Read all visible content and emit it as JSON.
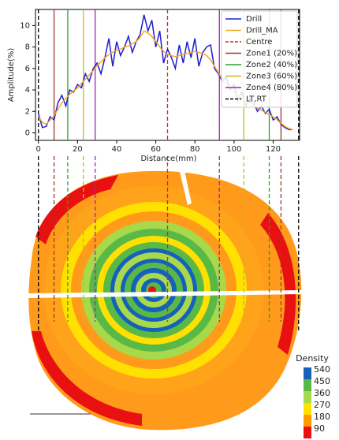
{
  "chart_data": {
    "type": "line",
    "xlabel": "Distance(mm)",
    "ylabel": "Amplitude(%)",
    "x": [
      0,
      2,
      4,
      6,
      8,
      10,
      12,
      14,
      16,
      18,
      20,
      22,
      24,
      26,
      28,
      30,
      32,
      34,
      36,
      38,
      40,
      42,
      44,
      46,
      48,
      50,
      52,
      54,
      56,
      58,
      60,
      62,
      64,
      66,
      68,
      70,
      72,
      74,
      76,
      78,
      80,
      82,
      84,
      86,
      88,
      90,
      92,
      94,
      96,
      98,
      100,
      102,
      104,
      106,
      108,
      110,
      112,
      114,
      116,
      118,
      120,
      122,
      124,
      126,
      128,
      130
    ],
    "series": [
      {
        "name": "Drill",
        "color": "#1f1fd0",
        "values": [
          1.8,
          0.5,
          0.6,
          1.5,
          1.2,
          2.8,
          3.5,
          2.5,
          4.0,
          3.8,
          4.5,
          4.2,
          5.5,
          4.8,
          6.0,
          6.5,
          5.5,
          7.0,
          8.8,
          6.2,
          8.5,
          7.2,
          8.0,
          9.0,
          7.5,
          8.5,
          9.2,
          11.0,
          9.5,
          10.5,
          8.0,
          9.5,
          6.5,
          7.8,
          7.0,
          6.0,
          8.2,
          6.5,
          8.5,
          7.0,
          8.8,
          6.2,
          7.5,
          8.0,
          8.2,
          6.0,
          5.5,
          4.8,
          5.2,
          4.0,
          4.5,
          3.0,
          3.8,
          2.5,
          3.2,
          2.8,
          2.0,
          2.5,
          1.8,
          2.2,
          1.2,
          1.5,
          0.8,
          0.5,
          0.3,
          0.3
        ]
      },
      {
        "name": "Drill_MA",
        "color": "#f5a623",
        "values": [
          1.5,
          1.0,
          0.8,
          1.2,
          1.6,
          2.2,
          2.8,
          3.2,
          3.6,
          3.9,
          4.2,
          4.6,
          5.0,
          5.4,
          5.8,
          6.3,
          6.6,
          7.0,
          7.3,
          7.5,
          7.7,
          7.8,
          8.0,
          8.1,
          8.3,
          8.5,
          8.9,
          9.5,
          9.3,
          9.0,
          8.5,
          8.0,
          7.6,
          7.3,
          7.2,
          7.1,
          7.2,
          7.3,
          7.4,
          7.5,
          7.6,
          7.5,
          7.4,
          7.2,
          6.8,
          6.2,
          5.6,
          5.0,
          4.6,
          4.2,
          3.8,
          3.5,
          3.2,
          3.0,
          2.8,
          2.6,
          2.3,
          2.1,
          1.9,
          1.7,
          1.5,
          1.2,
          0.9,
          0.6,
          0.4,
          0.3
        ]
      }
    ],
    "vlines": [
      {
        "name": "Centre",
        "color": "#d62728",
        "dashed": true,
        "x": [
          66
        ]
      },
      {
        "name": "Zone1 (20%)",
        "color": "#a0392b",
        "dashed": false,
        "x": [
          8,
          124
        ]
      },
      {
        "name": "Zone2 (40%)",
        "color": "#2ca02c",
        "dashed": false,
        "x": [
          15,
          118
        ]
      },
      {
        "name": "Zone3 (60%)",
        "color": "#bcbd22",
        "dashed": false,
        "x": [
          23,
          105
        ]
      },
      {
        "name": "Zone4 (80%)",
        "color": "#9c27b0",
        "dashed": false,
        "x": [
          29,
          92.5
        ]
      },
      {
        "name": "LT,RT",
        "color": "#000000",
        "dashed": true,
        "x": [
          0,
          133
        ]
      }
    ],
    "xlim": [
      -1.5,
      133.5
    ],
    "xticks": [
      0,
      20,
      40,
      60,
      80,
      100,
      120
    ],
    "ylim": [
      -0.7,
      11.5
    ],
    "yticks": [
      0,
      2,
      4,
      6,
      8,
      10
    ],
    "legend": "upper right",
    "colorbar": {
      "title": "Density",
      "ticks": [
        540,
        450,
        360,
        270,
        180,
        90
      ],
      "colors": [
        "#1560bd",
        "#58b947",
        "#a8d94a",
        "#ffe000",
        "#ff9a00",
        "#e81010"
      ]
    }
  }
}
